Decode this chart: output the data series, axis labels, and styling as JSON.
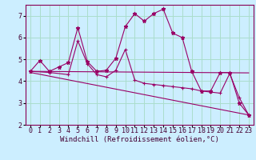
{
  "background_color": "#cceeff",
  "grid_color": "#aaddcc",
  "line_color": "#990066",
  "xlabel": "Windchill (Refroidissement éolien,°C)",
  "xlabel_fontsize": 6.5,
  "tick_fontsize": 6.0,
  "xlim": [
    -0.5,
    23.5
  ],
  "ylim": [
    2,
    7.5
  ],
  "yticks": [
    2,
    3,
    4,
    5,
    6,
    7
  ],
  "xticks": [
    0,
    1,
    2,
    3,
    4,
    5,
    6,
    7,
    8,
    9,
    10,
    11,
    12,
    13,
    14,
    15,
    16,
    17,
    18,
    19,
    20,
    21,
    22,
    23
  ],
  "xticklabels": [
    "0",
    "1",
    "2",
    "3",
    "4",
    "5",
    "6",
    "7",
    "8",
    "9",
    "10",
    "11",
    "12",
    "13",
    "14",
    "15",
    "16",
    "17",
    "18",
    "19",
    "20",
    "21",
    "22",
    "23"
  ],
  "series": [
    {
      "x": [
        0,
        1,
        2,
        3,
        4,
        5,
        6,
        7,
        8,
        9,
        10,
        11,
        12,
        13,
        14,
        15,
        16,
        17,
        18,
        19,
        20,
        21,
        22,
        23
      ],
      "y": [
        4.45,
        4.95,
        4.45,
        4.65,
        4.85,
        6.45,
        4.9,
        4.45,
        4.5,
        5.05,
        6.5,
        7.1,
        6.75,
        7.1,
        7.3,
        6.2,
        6.0,
        4.45,
        3.55,
        3.55,
        4.4,
        4.4,
        3.0,
        2.45
      ],
      "marker": "*",
      "markersize": 3.5
    },
    {
      "x": [
        0,
        2,
        4,
        5,
        6,
        7,
        8,
        9,
        10,
        11,
        12,
        13,
        14,
        15,
        16,
        17,
        18,
        19,
        20,
        21,
        22,
        23
      ],
      "y": [
        4.45,
        4.4,
        4.3,
        5.85,
        4.8,
        4.3,
        4.2,
        4.5,
        5.45,
        4.05,
        3.9,
        3.85,
        3.8,
        3.75,
        3.7,
        3.65,
        3.55,
        3.5,
        3.45,
        4.35,
        3.25,
        2.45
      ],
      "marker": "+",
      "markersize": 3.0
    },
    {
      "x": [
        0,
        23
      ],
      "y": [
        4.45,
        4.38
      ],
      "marker": null
    },
    {
      "x": [
        0,
        23
      ],
      "y": [
        4.4,
        2.45
      ],
      "marker": null
    }
  ]
}
